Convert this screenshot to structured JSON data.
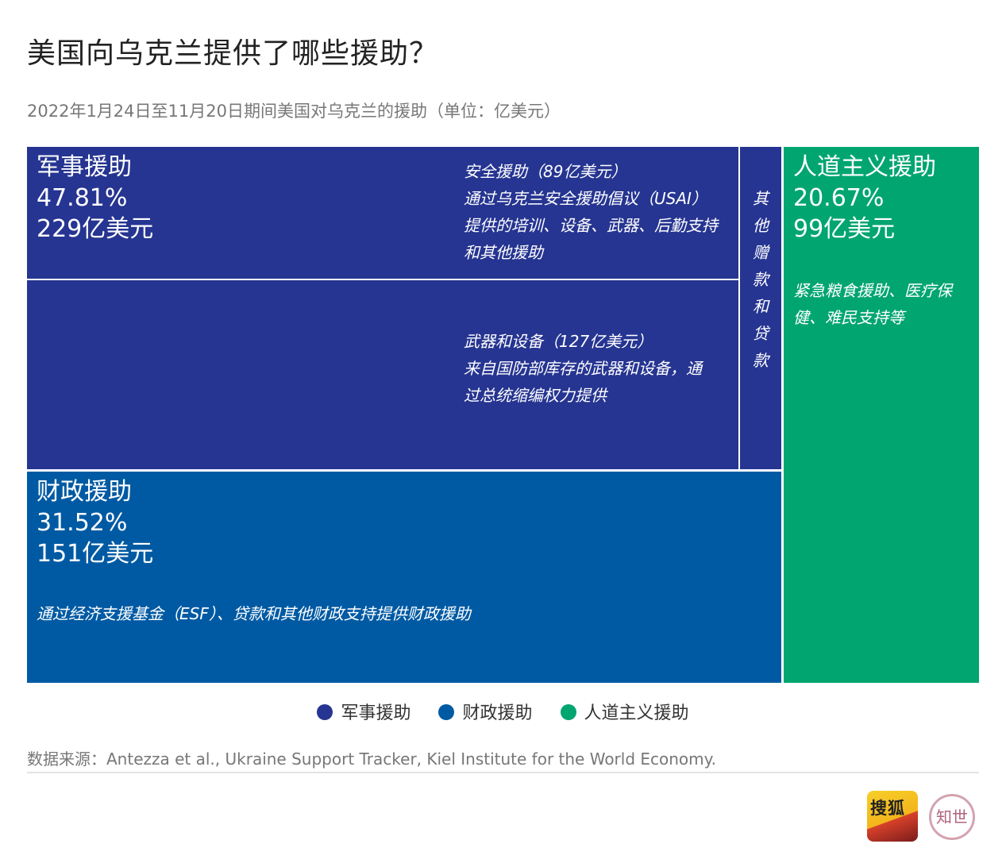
{
  "title": "美国向乌克兰提供了哪些援助？",
  "subtitle": "2022年1月24日至11月20日期间美国对乌克兰的援助（单位：亿美元）",
  "colors": {
    "military": "#263591",
    "financial": "#005aa3",
    "humanitarian": "#00a570"
  },
  "military": {
    "name": "军事援助",
    "percent": "47.81%",
    "amount": "229亿美元",
    "security_title": "安全援助（89亿美元）",
    "security_desc": "通过乌克兰安全援助倡议（USAI）提供的培训、设备、武器、后勤支持和其他援助",
    "weapons_title": "武器和设备（127亿美元）",
    "weapons_desc": "来自国防部库存的武器和设备，通过总统缩编权力提供",
    "other": "其他赠款和贷款"
  },
  "financial": {
    "name": "财政援助",
    "percent": "31.52%",
    "amount": "151亿美元",
    "desc": "通过经济支援基金（ESF）、贷款和其他财政支持提供财政援助"
  },
  "humanitarian": {
    "name": "人道主义援助",
    "percent": "20.67%",
    "amount": "99亿美元",
    "desc": "紧急粮食援助、医疗保健、难民支持等"
  },
  "legend": [
    "军事援助",
    "财政援助",
    "人道主义援助"
  ],
  "source": "数据来源：Antezza et al., Ukraine Support Tracker, Kiel Institute for the World Economy.",
  "logos": {
    "sohu": "搜狐",
    "zhishi": "知世"
  },
  "chart_data": {
    "type": "treemap",
    "title": "美国向乌克兰提供了哪些援助？",
    "unit": "亿美元",
    "categories": [
      {
        "name": "军事援助",
        "value": 229,
        "percent": 47.81,
        "children": [
          {
            "name": "安全援助",
            "value": 89
          },
          {
            "name": "武器和设备",
            "value": 127
          },
          {
            "name": "其他赠款和贷款"
          }
        ]
      },
      {
        "name": "财政援助",
        "value": 151,
        "percent": 31.52
      },
      {
        "name": "人道主义援助",
        "value": 99,
        "percent": 20.67
      }
    ],
    "legend_position": "bottom"
  }
}
